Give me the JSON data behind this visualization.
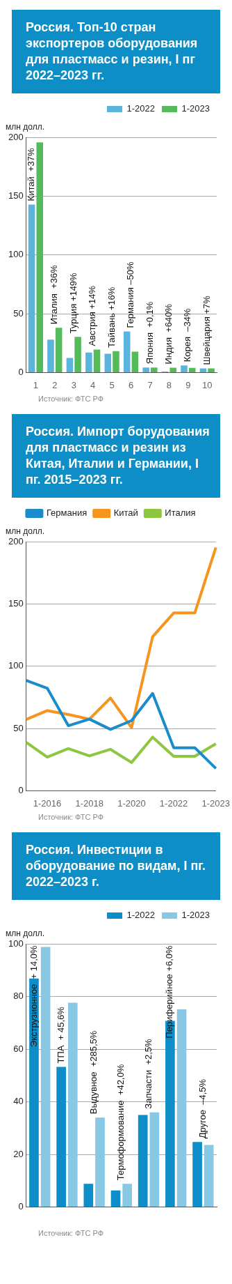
{
  "chart_data": [
    {
      "type": "bar",
      "title": "Россия. Топ-10 стран экспортеров оборудования для  пластмасс и резин, I пг  2022–2023 гг.",
      "ylabel": "млн долл.",
      "categories": [
        "1",
        "2",
        "3",
        "4",
        "5",
        "6",
        "7",
        "8",
        "9",
        "10"
      ],
      "series": [
        {
          "name": "1-2022",
          "color": "#5ab4dc",
          "values": [
            143,
            28,
            12.4,
            17,
            16,
            34.9,
            4.3,
            0.9,
            6,
            3.5
          ]
        },
        {
          "name": "1-2023",
          "color": "#55bb5a",
          "values": [
            196,
            38,
            30.3,
            19.5,
            18.2,
            17.7,
            4.3,
            4.1,
            3.9,
            3.5
          ]
        }
      ],
      "ylim": [
        0,
        200
      ],
      "yticks": [
        0,
        50,
        100,
        150,
        200
      ],
      "grid": "y",
      "legend": "top right",
      "annotations": [
        {
          "text": "Китай  +37%",
          "x": "1",
          "y": 196
        },
        {
          "text": "Италия  +36%",
          "x": "2",
          "y": 38
        },
        {
          "text": "Турция +149%",
          "x": "3",
          "y": 30.3
        },
        {
          "text": "Австрия +14%",
          "x": "4",
          "y": 19.5
        },
        {
          "text": "Тайвань +16%",
          "x": "5",
          "y": 18.2
        },
        {
          "text": "Германия –50%",
          "x": "6",
          "y": 34.9
        },
        {
          "text": "Япония  +0,1%",
          "x": "7",
          "y": 4.3
        },
        {
          "text": "Индия  +640%",
          "x": "8",
          "y": 4.1
        },
        {
          "text": "Корея  –34%",
          "x": "9",
          "y": 6
        },
        {
          "text": "Швейцария +7%",
          "x": "10",
          "y": 3.5
        },
        "Источник: ФТС РФ"
      ]
    },
    {
      "type": "line",
      "title": "Россия. Импорт борудования для пластмасс и резин из Китая, Италии и Германии, I пг. 2015–2023 гг.",
      "ylabel": "млн долл.",
      "categories": [
        null,
        "1-2016",
        null,
        "1-2018",
        null,
        "1-2020",
        null,
        "1-2022",
        null,
        "1-2023"
      ],
      "series": [
        {
          "name": "Германия",
          "color": "#1a8ccc",
          "values": [
            88.7,
            82.4,
            52.3,
            57.6,
            49.3,
            56.4,
            78.2,
            34.6,
            34.6,
            17.9
          ]
        },
        {
          "name": "Китай",
          "color": "#f7941d",
          "values": [
            57.3,
            64.4,
            61.3,
            57.6,
            74.5,
            50.7,
            123.8,
            142.9,
            142.9,
            195.5
          ]
        },
        {
          "name": "Италия",
          "color": "#8dc63f",
          "values": [
            39,
            27.1,
            33.9,
            28,
            33.3,
            22.7,
            43.1,
            27.7,
            27.7,
            37.8
          ]
        }
      ],
      "ylim": [
        0,
        200
      ],
      "yticks": [
        0,
        50,
        100,
        150,
        200
      ],
      "grid": "y",
      "legend": "top",
      "annotations": [
        "Источник: ФТС РФ"
      ]
    },
    {
      "type": "bar",
      "title": "Россия. Инвестиции в оборудование по видам, I пг. 2022–2023 г.",
      "ylabel": "млн долл.",
      "categories": [
        null,
        null,
        null,
        null,
        null,
        null,
        null
      ],
      "series": [
        {
          "name": "1-2022",
          "color": "#0e8ec8",
          "values": [
            86.9,
            53.3,
            8.8,
            6.3,
            35,
            70.8,
            24.7
          ]
        },
        {
          "name": "1-2023",
          "color": "#88c8e5",
          "values": [
            98.9,
            77.7,
            34,
            8.8,
            36,
            75.2,
            23.6
          ]
        }
      ],
      "ylim": [
        0,
        100
      ],
      "yticks": [
        0,
        20,
        40,
        60,
        80,
        100
      ],
      "grid": "y",
      "legend": "top right",
      "annotations": [
        "Экструзионное  + 14,0%",
        "ТПА  + 45,6%",
        "Выдувное  +285,5%",
        "Термоформование  +42,0%",
        "Запчасти  +2,5%",
        "Периферийное +6,0%",
        "Другое  –4,5%",
        "Источник: ФТС РФ"
      ]
    }
  ]
}
